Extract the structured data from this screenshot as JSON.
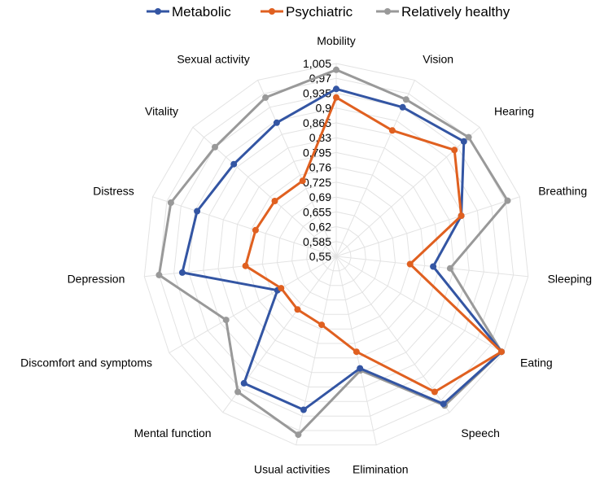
{
  "chart_data": {
    "type": "radar",
    "title": "",
    "legend_position": "top",
    "axes": [
      "Mobility",
      "Vision",
      "Hearing",
      "Breathing",
      "Sleeping",
      "Eating",
      "Speech",
      "Elimination",
      "Usual activities",
      "Mental function",
      "Discomfort and symptoms",
      "Depression",
      "Distress",
      "Vitality",
      "Sexual activity"
    ],
    "ticks": [
      "1,005",
      "0,97",
      "0,935",
      "0,9",
      "0,865",
      "0,83",
      "0,795",
      "0,76",
      "0,725",
      "0,69",
      "0,655",
      "0,62",
      "0,585",
      "0,55"
    ],
    "rlim": [
      0.55,
      1.005
    ],
    "series": [
      {
        "name": "Metabolic",
        "color": "#3355a3",
        "values": [
          0.945,
          0.935,
          0.955,
          0.86,
          0.78,
          1.0,
          0.98,
          0.82,
          0.92,
          0.92,
          0.71,
          0.915,
          0.895,
          0.875,
          0.895
        ]
      },
      {
        "name": "Psychiatric",
        "color": "#e06020",
        "values": [
          0.925,
          0.875,
          0.925,
          0.86,
          0.725,
          1.0,
          0.945,
          0.78,
          0.715,
          0.705,
          0.7,
          0.765,
          0.75,
          0.745,
          0.745
        ]
      },
      {
        "name": "Relatively healthy",
        "color": "#999999",
        "values": [
          0.99,
          0.955,
          0.97,
          0.975,
          0.82,
          1.0,
          0.985,
          0.825,
          0.98,
          0.945,
          0.85,
          0.97,
          0.96,
          0.935,
          0.96
        ]
      }
    ]
  }
}
